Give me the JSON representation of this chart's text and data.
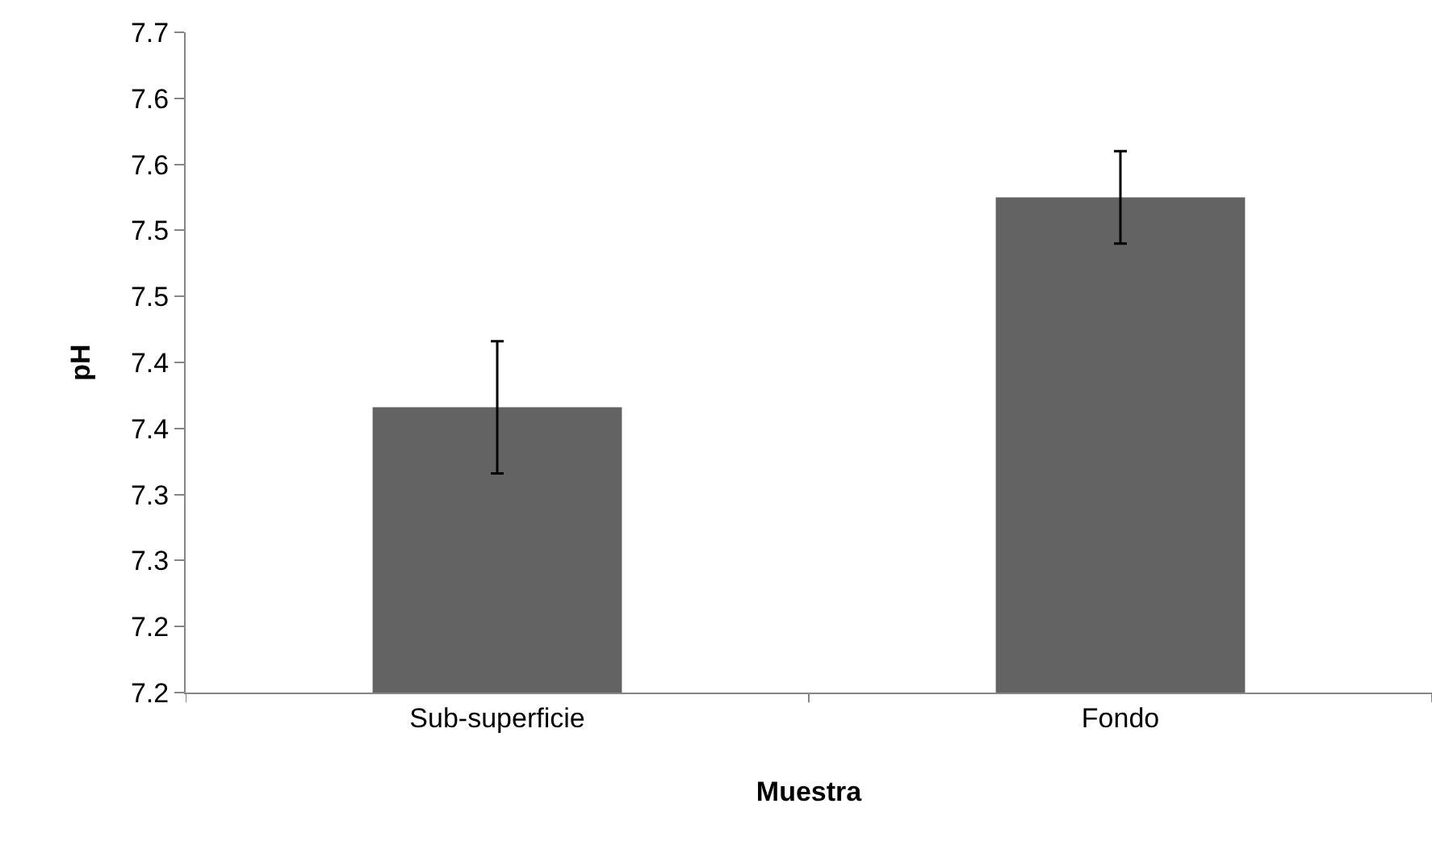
{
  "chart_data": {
    "type": "bar",
    "xlabel": "Muestra",
    "ylabel": "pH",
    "categories": [
      "Sub-superficie",
      "Fondo"
    ],
    "values": [
      7.416,
      7.575
    ],
    "errors": [
      0.05,
      0.035
    ],
    "color": "#636363",
    "ylim": [
      7.2,
      7.7
    ],
    "yticks": [
      {
        "value": 7.2,
        "label": "7.2"
      },
      {
        "value": 7.25,
        "label": "7.2"
      },
      {
        "value": 7.3,
        "label": "7.3"
      },
      {
        "value": 7.35,
        "label": "7.3"
      },
      {
        "value": 7.4,
        "label": "7.4"
      },
      {
        "value": 7.45,
        "label": "7.4"
      },
      {
        "value": 7.5,
        "label": "7.5"
      },
      {
        "value": 7.55,
        "label": "7.5"
      },
      {
        "value": 7.6,
        "label": "7.6"
      },
      {
        "value": 7.65,
        "label": "7.6"
      },
      {
        "value": 7.7,
        "label": "7.7"
      }
    ],
    "grid": false,
    "legend": false
  }
}
